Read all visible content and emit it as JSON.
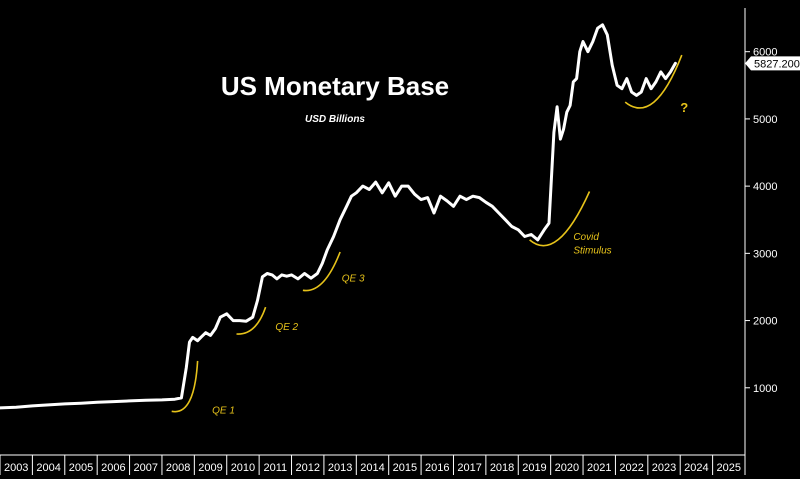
{
  "chart_data": {
    "type": "line",
    "title": "US Monetary Base",
    "subtitle": "USD Billions",
    "xlim": [
      2003,
      2026
    ],
    "ylim": [
      0,
      6650
    ],
    "x_ticks": [
      "2003",
      "2004",
      "2005",
      "2006",
      "2007",
      "2008",
      "2009",
      "2010",
      "2011",
      "2012",
      "2013",
      "2014",
      "2015",
      "2016",
      "2017",
      "2018",
      "2019",
      "2020",
      "2021",
      "2022",
      "2023",
      "2024",
      "2025"
    ],
    "y_ticks": [
      1000,
      2000,
      3000,
      4000,
      5000,
      6000
    ],
    "last_value_label": "5827.200",
    "line_color": "#ffffff",
    "annotation_color": "#e6c21a",
    "grid": false,
    "legend": "none",
    "series": [
      {
        "x": [
          2003.0,
          2003.5,
          2004.0,
          2004.5,
          2005.0,
          2005.5,
          2006.0,
          2006.5,
          2007.0,
          2007.5,
          2008.0,
          2008.4,
          2008.6,
          2008.75,
          2008.85,
          2008.95,
          2009.1,
          2009.2,
          2009.35,
          2009.5,
          2009.65,
          2009.8,
          2010.0,
          2010.2,
          2010.4,
          2010.6,
          2010.8,
          2010.95,
          2011.1,
          2011.25,
          2011.4,
          2011.55,
          2011.7,
          2011.85,
          2012.0,
          2012.2,
          2012.4,
          2012.6,
          2012.8,
          2012.95,
          2013.1,
          2013.3,
          2013.5,
          2013.7,
          2013.85,
          2014.0,
          2014.2,
          2014.4,
          2014.6,
          2014.8,
          2015.0,
          2015.2,
          2015.4,
          2015.6,
          2015.8,
          2016.0,
          2016.2,
          2016.4,
          2016.6,
          2016.8,
          2017.0,
          2017.2,
          2017.4,
          2017.6,
          2017.8,
          2018.0,
          2018.2,
          2018.4,
          2018.6,
          2018.8,
          2019.0,
          2019.2,
          2019.4,
          2019.6,
          2019.8,
          2019.95,
          2020.1,
          2020.2,
          2020.3,
          2020.4,
          2020.5,
          2020.6,
          2020.7,
          2020.8,
          2020.9,
          2021.0,
          2021.15,
          2021.3,
          2021.45,
          2021.6,
          2021.75,
          2021.9,
          2022.05,
          2022.2,
          2022.35,
          2022.5,
          2022.65,
          2022.8,
          2022.95,
          2023.1,
          2023.25,
          2023.4,
          2023.55,
          2023.7,
          2023.85
        ],
        "y": [
          700,
          710,
          730,
          745,
          760,
          770,
          785,
          795,
          805,
          815,
          820,
          830,
          850,
          1300,
          1680,
          1750,
          1700,
          1750,
          1820,
          1780,
          1880,
          2050,
          2100,
          2000,
          2000,
          1990,
          2050,
          2300,
          2650,
          2700,
          2680,
          2620,
          2680,
          2660,
          2680,
          2620,
          2700,
          2630,
          2700,
          2850,
          3050,
          3250,
          3500,
          3700,
          3850,
          3900,
          4000,
          3950,
          4060,
          3900,
          4050,
          3850,
          4000,
          4000,
          3880,
          3800,
          3830,
          3600,
          3850,
          3780,
          3700,
          3850,
          3800,
          3850,
          3830,
          3760,
          3700,
          3600,
          3500,
          3400,
          3350,
          3250,
          3280,
          3200,
          3350,
          3450,
          4800,
          5180,
          4700,
          4850,
          5100,
          5200,
          5550,
          5600,
          6000,
          6150,
          6000,
          6150,
          6350,
          6400,
          6250,
          5800,
          5500,
          5450,
          5600,
          5400,
          5350,
          5400,
          5600,
          5450,
          5550,
          5700,
          5600,
          5700,
          5827
        ]
      }
    ],
    "annotations": [
      {
        "label": "QE 1",
        "arc_from": [
          2008.3,
          650
        ],
        "arc_via": [
          2009.0,
          580
        ],
        "arc_to": [
          2009.1,
          1400
        ],
        "label_at": [
          2009.55,
          620
        ]
      },
      {
        "label": "QE 2",
        "arc_from": [
          2010.3,
          1800
        ],
        "arc_via": [
          2010.9,
          1780
        ],
        "arc_to": [
          2011.2,
          2200
        ],
        "label_at": [
          2011.5,
          1860
        ]
      },
      {
        "label": "QE 3",
        "arc_from": [
          2012.35,
          2450
        ],
        "arc_via": [
          2013.0,
          2400
        ],
        "arc_to": [
          2013.5,
          3020
        ],
        "label_at": [
          2013.55,
          2580
        ]
      },
      {
        "label": "Covid",
        "arc_from": [
          2019.35,
          3200
        ],
        "arc_via": [
          2020.2,
          2850
        ],
        "arc_to": [
          2021.2,
          3920
        ],
        "label_at": [
          2020.7,
          3200
        ]
      },
      {
        "label": "Stimulus",
        "arc_from": null,
        "arc_via": null,
        "arc_to": null,
        "label_at": [
          2020.7,
          3000
        ]
      },
      {
        "label": "?",
        "arc_from": [
          2022.3,
          5250
        ],
        "arc_via": [
          2023.2,
          4900
        ],
        "arc_to": [
          2024.05,
          5950
        ],
        "label_at": [
          2024.0,
          5100
        ]
      }
    ]
  }
}
